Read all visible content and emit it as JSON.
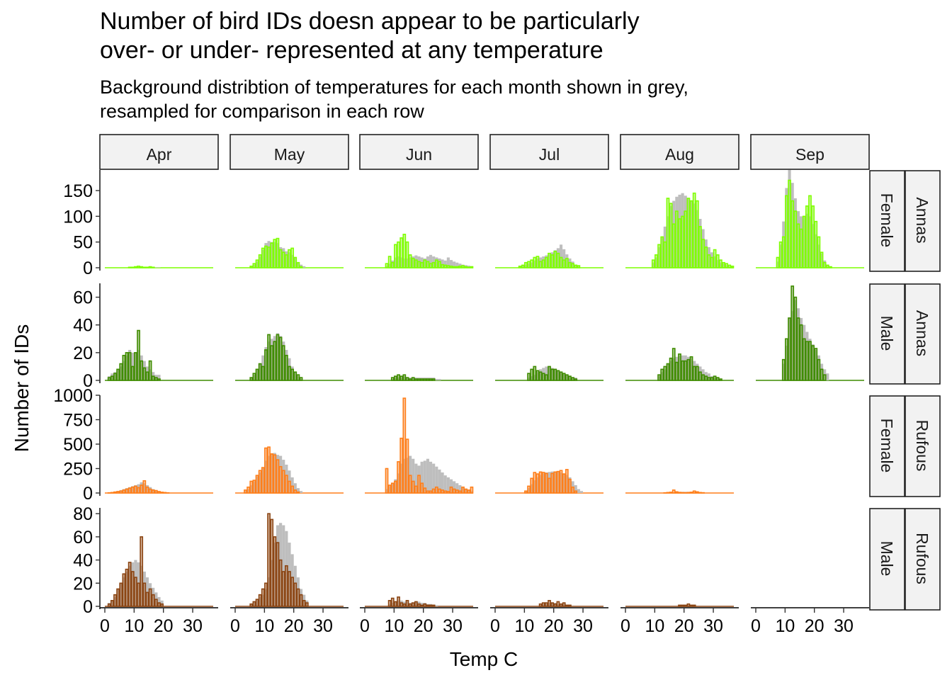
{
  "title": {
    "line1": "Number of bird IDs doesn appear to be particularly",
    "line2": "over- or under- represented at any temperature"
  },
  "subtitle": {
    "line1": "Background distribtion of temperatures for each month shown in grey,",
    "line2": "resampled for comparison in each row"
  },
  "chart_data": {
    "type": "bar",
    "subtype": "faceted histogram",
    "xlabel": "Temp C",
    "ylabel": "Number of IDs",
    "xlim": [
      0,
      37
    ],
    "xticks": [
      0,
      10,
      20,
      30
    ],
    "bin_width": 1,
    "bin_start": 0,
    "background_color": "#bebebe",
    "columns": [
      "Apr",
      "May",
      "Jun",
      "Jul",
      "Aug",
      "Sep"
    ],
    "rows": [
      {
        "species": "Annas",
        "sex": "Female",
        "color": "#7fff00",
        "fill": "#a8ec64",
        "ylim": [
          0,
          190
        ],
        "yticks": [
          0,
          50,
          100,
          150
        ]
      },
      {
        "species": "Annas",
        "sex": "Male",
        "color": "#3f8c00",
        "fill": "#7aa84a",
        "ylim": [
          0,
          70
        ],
        "yticks": [
          0,
          20,
          40,
          60
        ]
      },
      {
        "species": "Rufous",
        "sex": "Female",
        "color": "#ff7f1a",
        "fill": "#f4a064",
        "ylim": [
          0,
          1000
        ],
        "yticks": [
          0,
          250,
          500,
          750,
          1000
        ]
      },
      {
        "species": "Rufous",
        "sex": "Male",
        "color": "#8b4513",
        "fill": "#b47a50",
        "ylim": [
          0,
          85
        ],
        "yticks": [
          0,
          20,
          40,
          60,
          80
        ]
      }
    ],
    "panels": [
      [
        {
          "start": 8,
          "ids": [
            1,
            1,
            2,
            3,
            2,
            1,
            1,
            2,
            1
          ],
          "bg": [
            0,
            1,
            1,
            1,
            2,
            2,
            2,
            2,
            1,
            1,
            1
          ]
        },
        {
          "start": 5,
          "ids": [
            3,
            8,
            15,
            25,
            38,
            42,
            40,
            48,
            55,
            57,
            35,
            30,
            25,
            35,
            38,
            20,
            10,
            2
          ],
          "bg": [
            2,
            6,
            12,
            22,
            35,
            48,
            52,
            50,
            50,
            48,
            40,
            38,
            32,
            30,
            25,
            20,
            10,
            6,
            3
          ]
        },
        {
          "start": 7,
          "ids": [
            8,
            22,
            10,
            45,
            50,
            58,
            65,
            50,
            25,
            18,
            15,
            12,
            10,
            15,
            12,
            8,
            10,
            15,
            12,
            6,
            5,
            4,
            3,
            2,
            2,
            3,
            4,
            2,
            1,
            2
          ],
          "bg": [
            4,
            8,
            14,
            20,
            22,
            20,
            18,
            18,
            20,
            22,
            24,
            22,
            20,
            18,
            22,
            25,
            22,
            20,
            18,
            16,
            14,
            20,
            15,
            12,
            10,
            8,
            6,
            5,
            4,
            3
          ]
        },
        {
          "start": 8,
          "ids": [
            3,
            5,
            10,
            12,
            15,
            20,
            22,
            12,
            15,
            20,
            28,
            25,
            32,
            28,
            20,
            15,
            18,
            10,
            8,
            5,
            4
          ],
          "bg": [
            2,
            4,
            6,
            8,
            10,
            14,
            18,
            20,
            22,
            24,
            26,
            30,
            34,
            38,
            45,
            36,
            26,
            18,
            12,
            6,
            4
          ]
        },
        {
          "start": 9,
          "ids": [
            15,
            25,
            45,
            60,
            50,
            135,
            125,
            85,
            110,
            95,
            100,
            110,
            135,
            130,
            145,
            130,
            80,
            55,
            40,
            25,
            20,
            35,
            25,
            15,
            10,
            8,
            5,
            3
          ],
          "bg": [
            10,
            20,
            40,
            60,
            80,
            100,
            120,
            130,
            138,
            142,
            145,
            140,
            135,
            130,
            125,
            112,
            95,
            75,
            55,
            40,
            30,
            22,
            15,
            10,
            8,
            5,
            3,
            2
          ]
        },
        {
          "start": 7,
          "ids": [
            20,
            50,
            60,
            140,
            170,
            130,
            110,
            85,
            75,
            100,
            120,
            140,
            120,
            90,
            60,
            30,
            10,
            5,
            2
          ],
          "bg": [
            12,
            45,
            90,
            155,
            190,
            165,
            135,
            110,
            100,
            100,
            105,
            100,
            85,
            65,
            45,
            28,
            14,
            6,
            2
          ]
        }
      ],
      [
        {
          "start": 1,
          "ids": [
            2,
            3,
            5,
            8,
            12,
            18,
            20,
            20,
            10,
            20,
            36,
            14,
            9,
            6,
            14,
            3,
            2,
            1
          ],
          "bg": [
            3,
            5,
            6,
            8,
            10,
            14,
            18,
            22,
            20,
            20,
            22,
            18,
            14,
            10,
            8,
            6,
            4,
            4
          ]
        },
        {
          "start": 5,
          "ids": [
            2,
            5,
            8,
            12,
            10,
            22,
            33,
            25,
            28,
            33,
            31,
            25,
            18,
            10,
            8,
            6,
            4,
            2
          ],
          "bg": [
            2,
            4,
            8,
            12,
            18,
            24,
            28,
            30,
            32,
            34,
            32,
            28,
            22,
            16,
            10,
            6,
            3,
            1
          ]
        },
        {
          "start": 9,
          "ids": [
            2,
            3,
            4,
            3,
            4,
            2,
            1,
            2,
            1,
            1,
            1,
            1,
            1,
            1,
            1
          ],
          "bg": [
            1,
            2,
            2,
            2,
            3,
            2,
            2,
            2,
            2,
            2,
            2,
            2,
            2,
            2,
            2,
            1,
            1
          ]
        },
        {
          "start": 11,
          "ids": [
            5,
            8,
            10,
            7,
            6,
            5,
            4,
            10,
            8,
            8,
            7,
            6,
            5,
            4,
            3,
            2,
            1
          ],
          "bg": [
            2,
            3,
            4,
            6,
            8,
            9,
            10,
            10,
            9,
            8,
            7,
            6,
            5,
            4,
            3,
            2,
            2
          ]
        },
        {
          "start": 11,
          "ids": [
            4,
            8,
            10,
            12,
            16,
            23,
            13,
            19,
            14,
            14,
            15,
            17,
            10,
            10,
            6,
            4,
            3,
            2,
            2,
            3,
            2,
            1
          ],
          "bg": [
            3,
            6,
            8,
            12,
            14,
            16,
            17,
            18,
            18,
            18,
            17,
            16,
            14,
            12,
            10,
            8,
            6,
            5,
            3,
            2,
            2
          ]
        },
        {
          "start": 9,
          "ids": [
            15,
            30,
            45,
            68,
            60,
            45,
            40,
            30,
            28,
            28,
            25,
            23,
            15,
            8,
            4
          ],
          "bg": [
            12,
            25,
            45,
            50,
            58,
            52,
            45,
            40,
            35,
            30,
            26,
            22,
            18,
            12,
            8,
            5
          ]
        }
      ],
      [
        {
          "start": 1,
          "ids": [
            2,
            5,
            10,
            15,
            20,
            30,
            40,
            50,
            60,
            70,
            55,
            80,
            125,
            60,
            40,
            30,
            25,
            15,
            8,
            5,
            2
          ],
          "bg": [
            5,
            10,
            15,
            20,
            30,
            40,
            50,
            60,
            70,
            80,
            90,
            110,
            100,
            80,
            60,
            40,
            25,
            15,
            10,
            6,
            3
          ]
        },
        {
          "start": 3,
          "ids": [
            30,
            60,
            120,
            130,
            180,
            230,
            260,
            460,
            470,
            400,
            390,
            340,
            270,
            230,
            180,
            120,
            70,
            30,
            10
          ],
          "bg": [
            20,
            40,
            80,
            120,
            170,
            210,
            260,
            330,
            380,
            400,
            410,
            390,
            380,
            340,
            290,
            230,
            160,
            100,
            50,
            20
          ]
        },
        {
          "start": 7,
          "ids": [
            250,
            80,
            100,
            120,
            320,
            560,
            970,
            550,
            180,
            120,
            70,
            180,
            100,
            50,
            20,
            20,
            40,
            60,
            40,
            30,
            20,
            15,
            60,
            40,
            30,
            20,
            60,
            40,
            30,
            60
          ],
          "bg": [
            40,
            70,
            100,
            140,
            200,
            300,
            350,
            360,
            380,
            350,
            300,
            280,
            320,
            330,
            350,
            320,
            300,
            270,
            240,
            210,
            180,
            160,
            140,
            120,
            100,
            80,
            60,
            40,
            30,
            20
          ]
        },
        {
          "start": 10,
          "ids": [
            20,
            70,
            150,
            210,
            195,
            215,
            210,
            200,
            150,
            200,
            215,
            220,
            230,
            195,
            240,
            140,
            60,
            20
          ],
          "bg": [
            20,
            50,
            90,
            130,
            160,
            185,
            200,
            210,
            215,
            220,
            220,
            215,
            210,
            200,
            185,
            160,
            120,
            80,
            40,
            20
          ]
        },
        {
          "start": 13,
          "ids": [
            2,
            5,
            8,
            30,
            12,
            6,
            4,
            3,
            5,
            8,
            20,
            12,
            5,
            3
          ],
          "bg": [
            2,
            4,
            6,
            8,
            10,
            12,
            12,
            12,
            12,
            10,
            8,
            6,
            4,
            2
          ]
        },
        {
          "start": 0,
          "ids": [],
          "bg": []
        }
      ],
      [
        {
          "start": 1,
          "ids": [
            2,
            5,
            10,
            15,
            20,
            28,
            32,
            38,
            30,
            25,
            20,
            60,
            20,
            12,
            15,
            10,
            6,
            3,
            2
          ],
          "bg": [
            3,
            5,
            8,
            15,
            20,
            25,
            30,
            35,
            38,
            40,
            38,
            35,
            30,
            25,
            20,
            16,
            12,
            8,
            5
          ]
        },
        {
          "start": 5,
          "ids": [
            2,
            4,
            6,
            10,
            15,
            20,
            80,
            75,
            60,
            55,
            40,
            30,
            35,
            30,
            25,
            20,
            15,
            10,
            5,
            3
          ],
          "bg": [
            2,
            4,
            6,
            8,
            10,
            15,
            25,
            40,
            55,
            70,
            72,
            70,
            65,
            55,
            45,
            35,
            25,
            15,
            10,
            5
          ]
        },
        {
          "start": 8,
          "ids": [
            5,
            7,
            4,
            8,
            3,
            2,
            5,
            2,
            3,
            4,
            2,
            1,
            2,
            1,
            1,
            1
          ],
          "bg": [
            2,
            3,
            4,
            5,
            5,
            4,
            4,
            3,
            3,
            4,
            4,
            3,
            3,
            2,
            2,
            1,
            1
          ]
        },
        {
          "start": 15,
          "ids": [
            2,
            3,
            3,
            5,
            3,
            2,
            4,
            2,
            3,
            1,
            1
          ],
          "bg": [
            1,
            2,
            2,
            3,
            3,
            3,
            2,
            2,
            2,
            1
          ]
        },
        {
          "start": 18,
          "ids": [
            1,
            1,
            1,
            2,
            1,
            1
          ],
          "bg": [
            1,
            1,
            1,
            1,
            1,
            1
          ]
        },
        {
          "start": 0,
          "ids": [],
          "bg": []
        }
      ]
    ],
    "strip_labels": {
      "Female": "Female",
      "Male": "Male",
      "Annas": "Annas",
      "Rufous": "Rufous"
    }
  }
}
